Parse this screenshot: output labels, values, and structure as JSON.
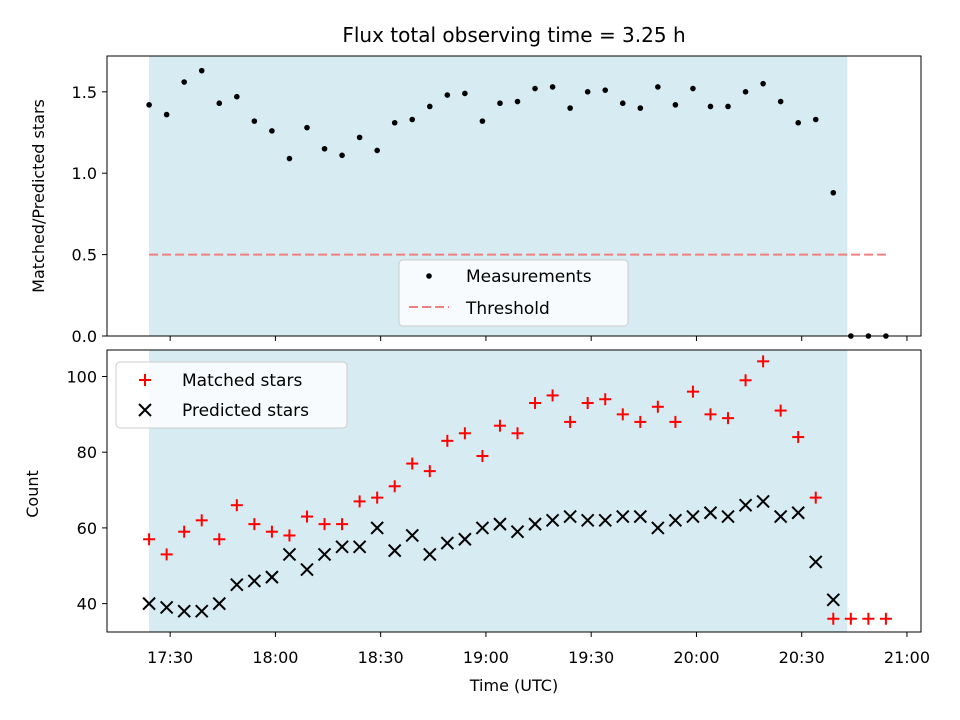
{
  "chart_data": [
    {
      "type": "scatter",
      "title": "Flux total observing time = 3.25 h",
      "ylabel": "Matched/Predicted stars",
      "ylim": [
        0,
        1.72
      ],
      "yticks": [
        0.0,
        0.5,
        1.0,
        1.5
      ],
      "ytick_labels": [
        "0.0",
        "0.5",
        "1.0",
        "1.5"
      ],
      "grid": false,
      "legend_position": "bottom-center",
      "shaded_region": {
        "start": "17:24",
        "end": "20:43",
        "color": "#add8e6"
      },
      "series": [
        {
          "name": "Measurements",
          "marker": "dot",
          "color": "#000000",
          "x": [
            "17:24",
            "17:29",
            "17:34",
            "17:39",
            "17:44",
            "17:49",
            "17:54",
            "17:59",
            "18:04",
            "18:09",
            "18:14",
            "18:19",
            "18:24",
            "18:29",
            "18:34",
            "18:39",
            "18:44",
            "18:49",
            "18:54",
            "18:59",
            "19:04",
            "19:09",
            "19:14",
            "19:19",
            "19:24",
            "19:29",
            "19:34",
            "19:39",
            "19:44",
            "19:49",
            "19:54",
            "19:59",
            "20:04",
            "20:09",
            "20:14",
            "20:19",
            "20:24",
            "20:29",
            "20:34",
            "20:39",
            "20:44",
            "20:49",
            "20:54"
          ],
          "y": [
            1.42,
            1.36,
            1.56,
            1.63,
            1.43,
            1.47,
            1.32,
            1.26,
            1.09,
            1.28,
            1.15,
            1.11,
            1.22,
            1.14,
            1.31,
            1.33,
            1.41,
            1.48,
            1.49,
            1.32,
            1.43,
            1.44,
            1.52,
            1.53,
            1.4,
            1.5,
            1.51,
            1.43,
            1.4,
            1.53,
            1.42,
            1.52,
            1.41,
            1.41,
            1.5,
            1.55,
            1.44,
            1.31,
            1.33,
            0.88,
            0.0,
            0.0,
            0.0
          ]
        },
        {
          "name": "Threshold",
          "marker": "dashed-line",
          "color": "#f08080",
          "x": [
            "17:24",
            "20:54"
          ],
          "y": [
            0.5,
            0.5
          ]
        }
      ]
    },
    {
      "type": "scatter",
      "xlabel": "Time (UTC)",
      "ylabel": "Count",
      "ylim": [
        32.5,
        107
      ],
      "yticks": [
        40,
        60,
        80,
        100
      ],
      "ytick_labels": [
        "40",
        "60",
        "80",
        "100"
      ],
      "xlim": [
        "17:12",
        "21:04"
      ],
      "xticks": [
        "17:30",
        "18:00",
        "18:30",
        "19:00",
        "19:30",
        "20:00",
        "20:30",
        "21:00"
      ],
      "xtick_labels": [
        "17:30",
        "18:00",
        "18:30",
        "19:00",
        "19:30",
        "20:00",
        "20:30",
        "21:00"
      ],
      "grid": false,
      "legend_position": "top-left",
      "shaded_region": {
        "start": "17:24",
        "end": "20:43",
        "color": "#add8e6"
      },
      "series": [
        {
          "name": "Matched stars",
          "marker": "plus",
          "color": "#ff0000",
          "x": [
            "17:24",
            "17:29",
            "17:34",
            "17:39",
            "17:44",
            "17:49",
            "17:54",
            "17:59",
            "18:04",
            "18:09",
            "18:14",
            "18:19",
            "18:24",
            "18:29",
            "18:34",
            "18:39",
            "18:44",
            "18:49",
            "18:54",
            "18:59",
            "19:04",
            "19:09",
            "19:14",
            "19:19",
            "19:24",
            "19:29",
            "19:34",
            "19:39",
            "19:44",
            "19:49",
            "19:54",
            "19:59",
            "20:04",
            "20:09",
            "20:14",
            "20:19",
            "20:24",
            "20:29",
            "20:34",
            "20:39",
            "20:44",
            "20:49",
            "20:54"
          ],
          "y": [
            57,
            53,
            59,
            62,
            57,
            66,
            61,
            59,
            58,
            63,
            61,
            61,
            67,
            68,
            71,
            77,
            75,
            83,
            85,
            79,
            87,
            85,
            93,
            95,
            88,
            93,
            94,
            90,
            88,
            92,
            88,
            96,
            90,
            89,
            99,
            104,
            91,
            84,
            68,
            36,
            36,
            36,
            36
          ]
        },
        {
          "name": "Predicted stars",
          "marker": "x",
          "color": "#000000",
          "x": [
            "17:24",
            "17:29",
            "17:34",
            "17:39",
            "17:44",
            "17:49",
            "17:54",
            "17:59",
            "18:04",
            "18:09",
            "18:14",
            "18:19",
            "18:24",
            "18:29",
            "18:34",
            "18:39",
            "18:44",
            "18:49",
            "18:54",
            "18:59",
            "19:04",
            "19:09",
            "19:14",
            "19:19",
            "19:24",
            "19:29",
            "19:34",
            "19:39",
            "19:44",
            "19:49",
            "19:54",
            "19:59",
            "20:04",
            "20:09",
            "20:14",
            "20:19",
            "20:24",
            "20:29",
            "20:34",
            "20:39"
          ],
          "y": [
            40,
            39,
            38,
            38,
            40,
            45,
            46,
            47,
            53,
            49,
            53,
            55,
            55,
            60,
            54,
            58,
            53,
            56,
            57,
            60,
            61,
            59,
            61,
            62,
            63,
            62,
            62,
            63,
            63,
            60,
            62,
            63,
            64,
            63,
            66,
            67,
            63,
            64,
            51,
            41
          ]
        }
      ]
    }
  ]
}
